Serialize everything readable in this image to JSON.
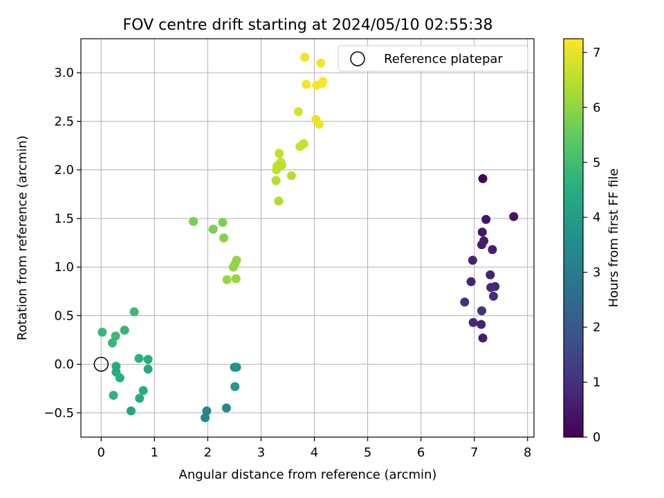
{
  "chart_data": {
    "type": "scatter",
    "title": "FOV centre drift starting at 2024/05/10 02:55:38",
    "xlabel": "Angular distance from reference (arcmin)",
    "ylabel": "Rotation from reference (arcmin)",
    "xlim": [
      -0.38,
      8.12
    ],
    "ylim": [
      -0.75,
      3.35
    ],
    "xticks": [
      0,
      1,
      2,
      3,
      4,
      5,
      6,
      7,
      8
    ],
    "xtick_labels": [
      "0",
      "1",
      "2",
      "3",
      "4",
      "5",
      "6",
      "7",
      "8"
    ],
    "yticks": [
      -0.5,
      0.0,
      0.5,
      1.0,
      1.5,
      2.0,
      2.5,
      3.0
    ],
    "ytick_labels": [
      "−0.5",
      "0.0",
      "0.5",
      "1.0",
      "1.5",
      "2.0",
      "2.5",
      "3.0"
    ],
    "grid": true,
    "colormap": "viridis",
    "colorbar": {
      "label": "Hours from first FF file",
      "range": [
        0,
        7.25
      ],
      "ticks": [
        0,
        1,
        2,
        3,
        4,
        5,
        6,
        7
      ],
      "tick_labels": [
        "0",
        "1",
        "2",
        "3",
        "4",
        "5",
        "6",
        "7"
      ]
    },
    "legend": {
      "position": "top-right",
      "entries": [
        "Reference platepar"
      ]
    },
    "reference_point": {
      "x": 0,
      "y": 0,
      "label": "Reference platepar"
    },
    "series": [
      {
        "points": [
          {
            "x": 7.16,
            "y": 1.91,
            "hours": 0.05
          },
          {
            "x": 7.74,
            "y": 1.52,
            "hours": 0.4
          },
          {
            "x": 7.22,
            "y": 1.49,
            "hours": 0.35
          },
          {
            "x": 7.15,
            "y": 1.36,
            "hours": 0.45
          },
          {
            "x": 7.18,
            "y": 1.27,
            "hours": 0.5
          },
          {
            "x": 7.14,
            "y": 1.23,
            "hours": 0.55
          },
          {
            "x": 7.34,
            "y": 1.18,
            "hours": 0.6
          },
          {
            "x": 6.97,
            "y": 1.07,
            "hours": 0.65
          },
          {
            "x": 7.3,
            "y": 0.92,
            "hours": 0.7
          },
          {
            "x": 6.94,
            "y": 0.85,
            "hours": 0.75
          },
          {
            "x": 7.39,
            "y": 0.8,
            "hours": 0.8
          },
          {
            "x": 7.31,
            "y": 0.79,
            "hours": 0.85
          },
          {
            "x": 7.36,
            "y": 0.7,
            "hours": 0.9
          },
          {
            "x": 6.82,
            "y": 0.64,
            "hours": 0.95
          },
          {
            "x": 7.14,
            "y": 0.55,
            "hours": 1.0
          },
          {
            "x": 6.98,
            "y": 0.43,
            "hours": 0.8
          },
          {
            "x": 7.13,
            "y": 0.41,
            "hours": 0.7
          },
          {
            "x": 7.16,
            "y": 0.27,
            "hours": 0.6
          },
          {
            "x": 2.35,
            "y": -0.45,
            "hours": 3.4
          },
          {
            "x": 1.98,
            "y": -0.48,
            "hours": 3.3
          },
          {
            "x": 1.95,
            "y": -0.55,
            "hours": 3.3
          },
          {
            "x": 2.5,
            "y": -0.03,
            "hours": 3.7
          },
          {
            "x": 2.54,
            "y": -0.03,
            "hours": 3.75
          },
          {
            "x": 2.51,
            "y": -0.23,
            "hours": 3.8
          },
          {
            "x": 0.62,
            "y": 0.54,
            "hours": 4.9
          },
          {
            "x": 0.44,
            "y": 0.35,
            "hours": 4.7
          },
          {
            "x": 0.02,
            "y": 0.33,
            "hours": 4.8
          },
          {
            "x": 0.27,
            "y": 0.29,
            "hours": 4.9
          },
          {
            "x": 0.21,
            "y": 0.22,
            "hours": 4.8
          },
          {
            "x": 0.71,
            "y": 0.06,
            "hours": 4.6
          },
          {
            "x": 0.88,
            "y": 0.05,
            "hours": 4.5
          },
          {
            "x": 0.28,
            "y": -0.02,
            "hours": 4.4
          },
          {
            "x": 0.88,
            "y": -0.05,
            "hours": 4.3
          },
          {
            "x": 0.28,
            "y": -0.08,
            "hours": 4.4
          },
          {
            "x": 0.35,
            "y": -0.14,
            "hours": 4.5
          },
          {
            "x": 0.79,
            "y": -0.27,
            "hours": 4.5
          },
          {
            "x": 0.23,
            "y": -0.32,
            "hours": 4.6
          },
          {
            "x": 0.72,
            "y": -0.35,
            "hours": 4.4
          },
          {
            "x": 0.56,
            "y": -0.48,
            "hours": 4.3
          },
          {
            "x": 1.73,
            "y": 1.47,
            "hours": 5.7
          },
          {
            "x": 2.28,
            "y": 1.46,
            "hours": 5.8
          },
          {
            "x": 2.1,
            "y": 1.39,
            "hours": 5.75
          },
          {
            "x": 2.3,
            "y": 1.3,
            "hours": 5.9
          },
          {
            "x": 2.54,
            "y": 1.07,
            "hours": 6.0
          },
          {
            "x": 2.51,
            "y": 1.03,
            "hours": 6.05
          },
          {
            "x": 2.48,
            "y": 1.0,
            "hours": 6.05
          },
          {
            "x": 2.36,
            "y": 0.87,
            "hours": 6.1
          },
          {
            "x": 2.53,
            "y": 0.88,
            "hours": 6.1
          },
          {
            "x": 3.34,
            "y": 2.17,
            "hours": 6.55
          },
          {
            "x": 3.8,
            "y": 2.27,
            "hours": 6.6
          },
          {
            "x": 3.73,
            "y": 2.24,
            "hours": 6.65
          },
          {
            "x": 3.37,
            "y": 2.08,
            "hours": 6.6
          },
          {
            "x": 3.39,
            "y": 2.05,
            "hours": 6.55
          },
          {
            "x": 3.3,
            "y": 2.04,
            "hours": 6.5
          },
          {
            "x": 3.29,
            "y": 2.0,
            "hours": 6.55
          },
          {
            "x": 3.57,
            "y": 1.94,
            "hours": 6.5
          },
          {
            "x": 3.28,
            "y": 1.89,
            "hours": 6.45
          },
          {
            "x": 3.33,
            "y": 1.68,
            "hours": 6.4
          },
          {
            "x": 3.7,
            "y": 2.6,
            "hours": 6.8
          },
          {
            "x": 3.82,
            "y": 3.16,
            "hours": 7.1
          },
          {
            "x": 4.12,
            "y": 3.1,
            "hours": 7.15
          },
          {
            "x": 4.16,
            "y": 2.91,
            "hours": 7.2
          },
          {
            "x": 4.14,
            "y": 2.89,
            "hours": 7.2
          },
          {
            "x": 3.85,
            "y": 2.88,
            "hours": 7.1
          },
          {
            "x": 4.04,
            "y": 2.87,
            "hours": 7.15
          },
          {
            "x": 4.03,
            "y": 2.52,
            "hours": 7.0
          },
          {
            "x": 4.09,
            "y": 2.47,
            "hours": 7.05
          }
        ]
      }
    ]
  }
}
